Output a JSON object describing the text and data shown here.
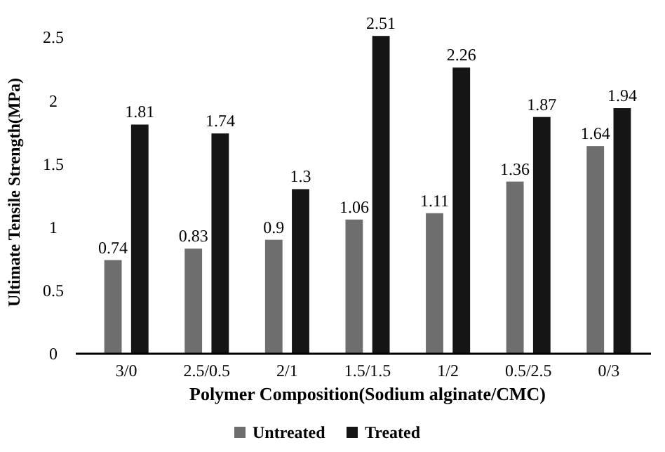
{
  "chart_data": {
    "type": "bar",
    "xlabel": "Polymer Composition(Sodium alginate/CMC)",
    "ylabel": "Ultimate Tensile Strength(MPa)",
    "categories": [
      "3/0",
      "2.5/0.5",
      "2/1",
      "1.5/1.5",
      "1/2",
      "0.5/2.5",
      "0/3"
    ],
    "series": [
      {
        "name": "Untreated",
        "color": "#6e6e6e",
        "values": [
          0.74,
          0.83,
          0.9,
          1.06,
          1.11,
          1.36,
          1.64
        ]
      },
      {
        "name": "Treated",
        "color": "#151515",
        "values": [
          1.81,
          1.74,
          1.3,
          2.51,
          2.26,
          1.87,
          1.94
        ]
      }
    ],
    "data_labels": true,
    "ylim": [
      0,
      2.55
    ],
    "yticks": [
      0,
      0.5,
      1,
      1.5,
      2,
      2.5
    ],
    "grid": false,
    "legend": "bottom"
  }
}
